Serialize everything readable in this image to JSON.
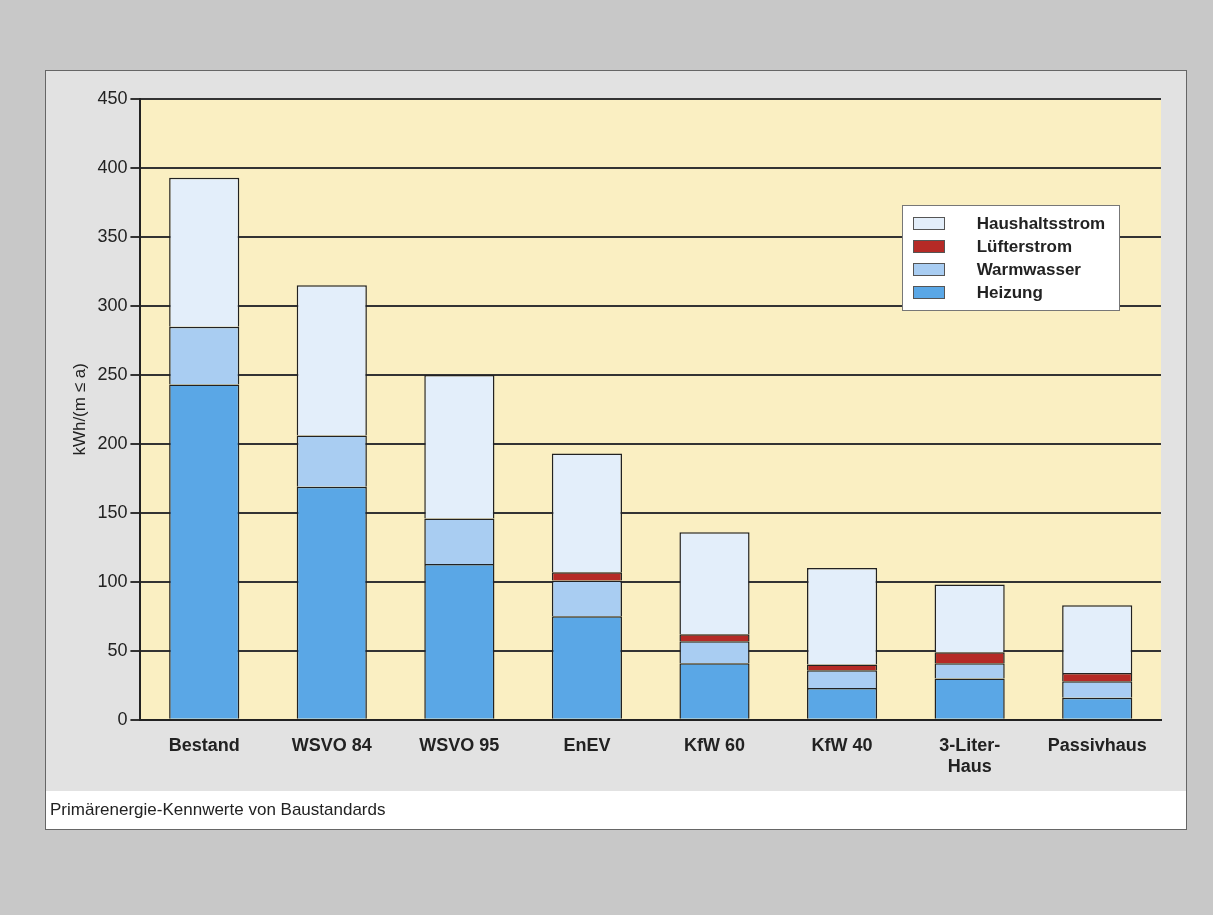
{
  "chart_data": {
    "type": "bar",
    "stacked": true,
    "categories": [
      "Bestand",
      "WSVO 84",
      "WSVO 95",
      "EnEV",
      "KfW 60",
      "KfW 40",
      "3-Liter-Haus",
      "Passivhaus"
    ],
    "series": [
      {
        "name": "Heizung",
        "color": "#5aa7e6",
        "values": [
          243,
          169,
          113,
          75,
          41,
          23,
          30,
          16
        ]
      },
      {
        "name": "Warmwasser",
        "color": "#a9cdf2",
        "values": [
          42,
          37,
          33,
          26,
          16,
          13,
          11,
          12
        ]
      },
      {
        "name": "Lüfterstrom",
        "color": "#b52a26",
        "values": [
          null,
          null,
          null,
          6,
          5,
          4,
          8,
          6
        ]
      },
      {
        "name": "Haushaltsstrom",
        "color": "#e3eefa",
        "values": [
          108,
          109,
          104,
          86,
          74,
          70,
          49,
          49
        ]
      }
    ],
    "ylabel": "kWh/(m ≤ a)",
    "ylim": [
      0,
      450
    ],
    "yticks": [
      0,
      50,
      100,
      150,
      200,
      250,
      300,
      350,
      400,
      450
    ],
    "grid": "y",
    "legend": "top right",
    "annotations": [
      "Primärenergie-Kennwerte von Baustandards"
    ]
  }
}
